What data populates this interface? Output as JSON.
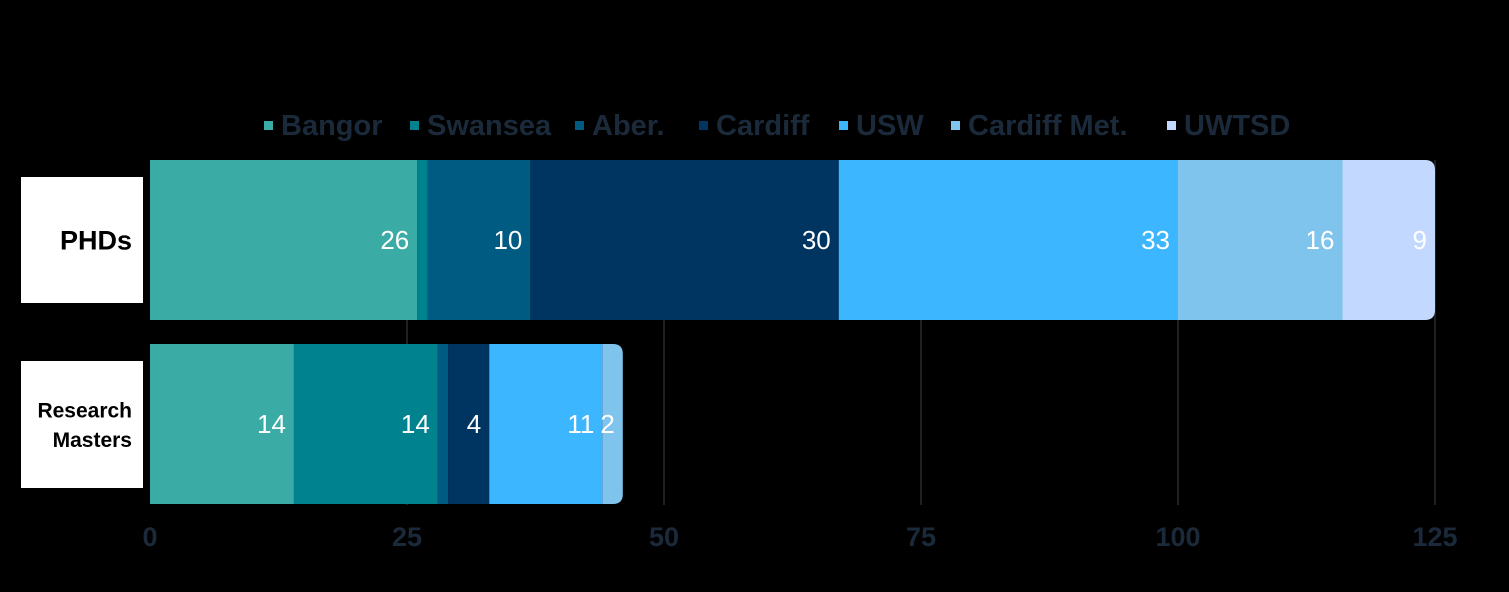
{
  "chart_data": {
    "type": "bar",
    "orientation": "horizontal",
    "stacked": true,
    "title": "",
    "xlabel": "",
    "ylabel": "",
    "categories": [
      "PHDs",
      "Research Masters"
    ],
    "xlim": [
      0,
      125
    ],
    "xticks": [
      0,
      25,
      50,
      75,
      100,
      125
    ],
    "grid": true,
    "legend_position": "top",
    "series": [
      {
        "name": "Bangor",
        "color": "#3aaca5",
        "values": [
          26,
          14
        ],
        "labels": [
          "26",
          "14"
        ]
      },
      {
        "name": "Swansea",
        "color": "#00838f",
        "values": [
          1,
          14
        ],
        "labels": [
          "",
          "14"
        ]
      },
      {
        "name": "Aber.",
        "color": "#005b82",
        "values": [
          10,
          1
        ],
        "labels": [
          "10",
          ""
        ]
      },
      {
        "name": "Cardiff",
        "color": "#003461",
        "values": [
          30,
          4
        ],
        "labels": [
          "30",
          "4"
        ]
      },
      {
        "name": "USW",
        "color": "#3bb6ff",
        "values": [
          33,
          11
        ],
        "labels": [
          "33",
          "11"
        ]
      },
      {
        "name": "Cardiff Met.",
        "color": "#7fc4ec",
        "values": [
          16,
          2
        ],
        "labels": [
          "16",
          "2"
        ]
      },
      {
        "name": "UWTSD",
        "color": "#c3d8ff",
        "values": [
          9,
          0
        ],
        "labels": [
          "9",
          ""
        ]
      }
    ]
  }
}
